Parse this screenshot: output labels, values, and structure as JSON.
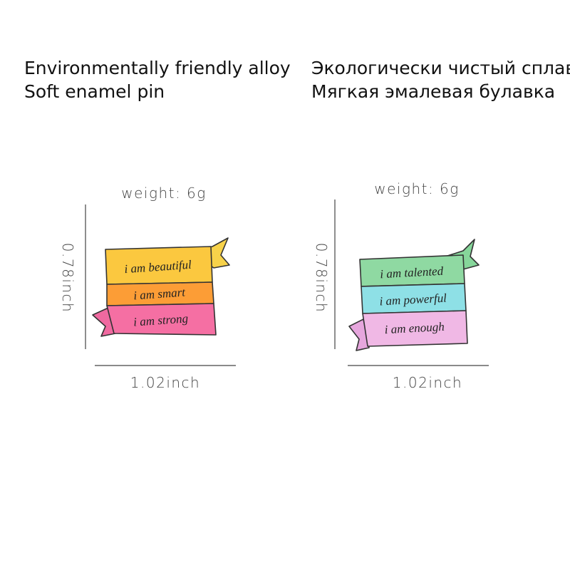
{
  "header": {
    "left": [
      "Environmentally friendly alloy",
      "Soft enamel pin"
    ],
    "right": [
      "Экологически чистый сплав",
      "Мягкая эмалевая булавка"
    ]
  },
  "products": [
    {
      "weight": "weight:  6g",
      "height": "0.78inch",
      "width": "1.02inch",
      "ribbons": [
        "i am beautiful",
        "i am smart",
        "i am strong"
      ]
    },
    {
      "weight": "weight:  6g",
      "height": "0.78inch",
      "width": "1.02inch",
      "ribbons": [
        "i am talented",
        "i am powerful",
        "i am enough"
      ]
    }
  ]
}
